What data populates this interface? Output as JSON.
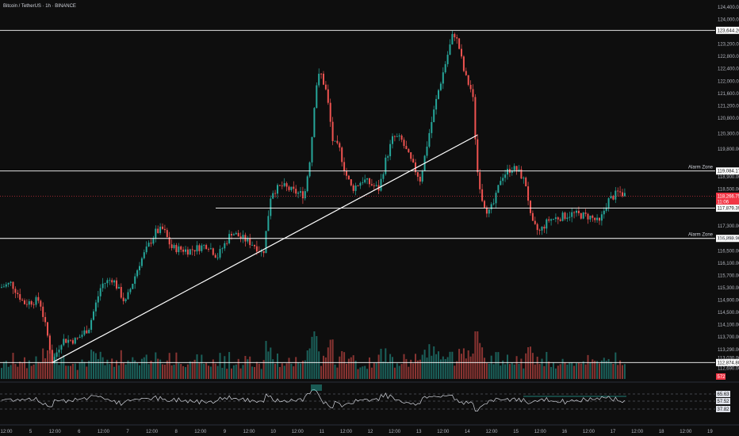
{
  "header": {
    "title": "Bitcoin / TetherUS · 1h · BINANCE"
  },
  "colors": {
    "up": "#26a69a",
    "down": "#ef5350",
    "background": "#0e0e0e",
    "level_line": "#ffffff",
    "current_price": "#f23645"
  },
  "chart_data": {
    "type": "candlestick",
    "x_tick_labels": [
      "12:00",
      "5",
      "12:00",
      "6",
      "12:00",
      "7",
      "12:00",
      "8",
      "12:00",
      "9",
      "12:00",
      "10",
      "12:00",
      "11",
      "12:00",
      "12",
      "12:00",
      "13",
      "12:00",
      "14",
      "12:00",
      "15",
      "12:00",
      "16",
      "12:00",
      "17",
      "12:00",
      "18",
      "12:00",
      "19"
    ],
    "y_tick_labels": [
      "124,400.00",
      "124,000.00",
      "123,200.00",
      "122,800.00",
      "122,400.00",
      "122,000.00",
      "121,600.00",
      "121,200.00",
      "120,800.00",
      "120,300.00",
      "119,800.00",
      "118,900.00",
      "118,500.00",
      "117,300.00",
      "116,900.00",
      "116,500.00",
      "116,100.00",
      "115,700.00",
      "115,300.00",
      "114,900.00",
      "114,500.00",
      "114,100.00",
      "113,700.00",
      "113,290.00",
      "113,030.00",
      "112,690.00"
    ],
    "ylim": [
      112600,
      124500
    ],
    "levels": [
      {
        "value": "123,644.26",
        "label": ""
      },
      {
        "value": "119,084.17",
        "label": "Alarm Zone"
      },
      {
        "value": "117,879.39",
        "label": ""
      },
      {
        "value": "116,898.96",
        "label": "Alarm Zone"
      },
      {
        "value": "112,874.80",
        "label": ""
      }
    ],
    "current_price": {
      "value": "118,266.75",
      "countdown": "11:06"
    },
    "volume_badge": "572",
    "trendline": {
      "from_price": 112874.8,
      "to_price": 120250
    },
    "rsi": {
      "levels": [
        "65.63",
        "57.52",
        "37.82"
      ]
    }
  }
}
